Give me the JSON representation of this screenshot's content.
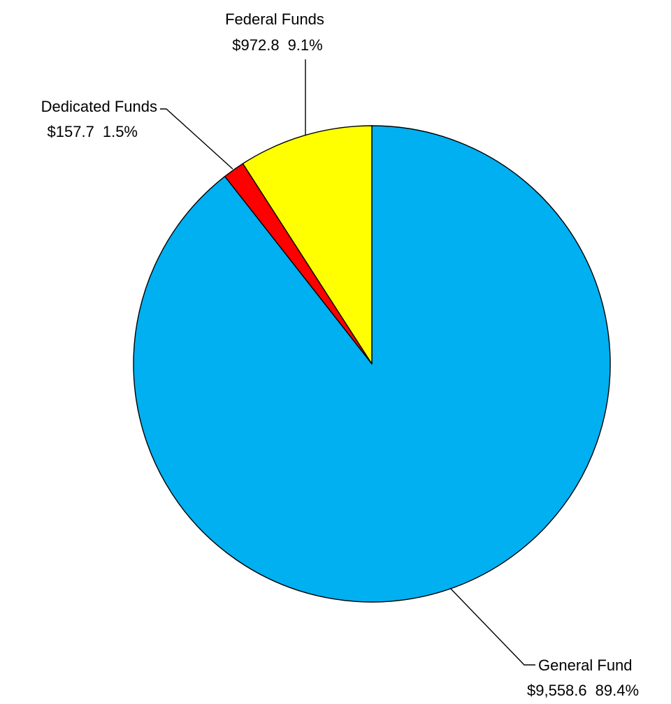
{
  "chart_data": {
    "type": "pie",
    "title": "",
    "slices": [
      {
        "name": "General Fund",
        "value": 9558.6,
        "percent": 89.4,
        "value_label": "$9,558.6",
        "percent_label": "89.4%",
        "color": "#00B0F0"
      },
      {
        "name": "Dedicated Funds",
        "value": 157.7,
        "percent": 1.5,
        "value_label": "$157.7",
        "percent_label": "1.5%",
        "color": "#FF0000"
      },
      {
        "name": "Federal Funds",
        "value": 972.8,
        "percent": 9.1,
        "value_label": "$972.8",
        "percent_label": "9.1%",
        "color": "#FFFF00"
      }
    ],
    "start_angle": "12 o'clock",
    "direction": "clockwise",
    "legend": "none",
    "data_labels": "outside with leader lines"
  }
}
